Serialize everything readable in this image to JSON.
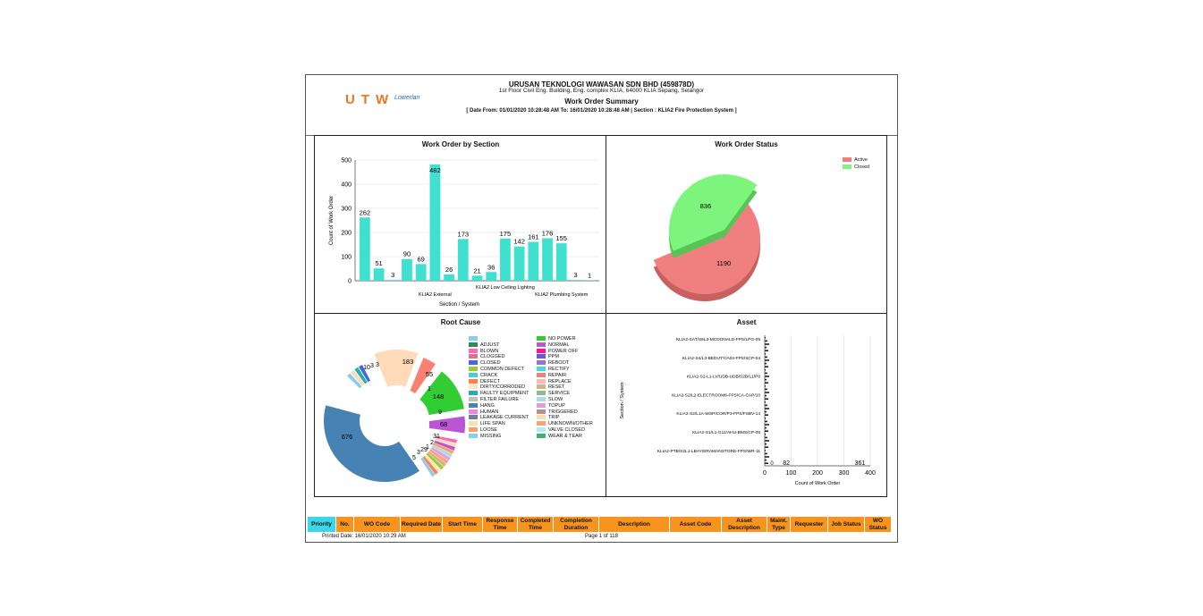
{
  "header": {
    "logo_text": "UTW",
    "logo_mark": "Lowerlan",
    "company": "URUSAN TEKNOLOGI WAWASAN SDN BHD (459878D)",
    "address": "1st Floor Civil Eng. Building, Eng. complex KLIA, 64000 KLIA Sepang, Selangor",
    "title": "Work Order Summary",
    "range": "[ Date From: 01/01/2020 10:28:48 AM  To: 16/01/2020 10:28:48 AM | Section : KLIA2 Fire Protection System ]"
  },
  "chart_data": [
    {
      "type": "bar",
      "title": "Work Order by Section",
      "xlabel": "Section / System",
      "ylabel": "Count of Work Order",
      "ylim": [
        0,
        500
      ],
      "yticks": [
        "0",
        "100",
        "200",
        "300",
        "400",
        "500"
      ],
      "values": [
        262,
        51,
        3,
        90,
        69,
        482,
        26,
        173,
        21,
        36,
        175,
        142,
        161,
        176,
        155,
        3,
        1
      ],
      "xtick_labels": [
        {
          "label": "KLIA2 External",
          "index": 5
        },
        {
          "label": "KLIA2 Low Ceiling Lighting",
          "index": 10
        },
        {
          "label": "KLIA2 Plumbing System",
          "index": 14
        }
      ],
      "color": "#40e0d0",
      "grid": true
    },
    {
      "type": "pie",
      "title": "Work Order Status",
      "slices": [
        {
          "label": "Active",
          "value": 1190,
          "color": "#f08080"
        },
        {
          "label": "Closed",
          "value": 836,
          "color": "#7df57d"
        }
      ],
      "legend": "top-right"
    },
    {
      "type": "pie",
      "title": "Root Cause",
      "donut": true,
      "visible_labels": [
        "676",
        "183",
        "55",
        "1",
        "148",
        "9",
        "68",
        "31",
        "2",
        "1",
        "3",
        "5",
        "29",
        "10",
        "3",
        "3"
      ],
      "major_slices": [
        {
          "value": 676,
          "color": "#4682b4"
        },
        {
          "value": 183,
          "color": "#ffdab9"
        },
        {
          "value": 55,
          "color": "#fa8072"
        },
        {
          "value": 148,
          "color": "#32cd32"
        },
        {
          "value": 68,
          "color": "#ba55d3"
        }
      ],
      "legend_left": [
        "",
        "ADJUST",
        "BLOWN",
        "CLOGGED",
        "CLOSED",
        "COMMON DEFECT",
        "CRACK",
        "DEFECT",
        "DIRTY/CORRODED",
        "FAULTY EQUIPMENT",
        "FILTER FAILURE",
        "HANG",
        "HUMAN",
        "LEAKAGE CURRENT",
        "LIFE SPAN",
        "LOOSE",
        "MISSING"
      ],
      "legend_left_colors": [
        "#87ceeb",
        "#2e8b57",
        "#ff69b4",
        "#db7093",
        "#4169e1",
        "#9acd32",
        "#48d1cc",
        "#ff7f50",
        "#ffe4c4",
        "#20b2aa",
        "#c0c0c0",
        "#4682b4",
        "#ee82ee",
        "#708090",
        "#ffdead",
        "#f4a460",
        "#87ceeb"
      ],
      "legend_right": [
        "NO POWER",
        "NORMAL",
        "POWER OFF",
        "PPM",
        "REBOOT",
        "RECTIFY",
        "REPAIR",
        "REPLACE",
        "RESET",
        "SERVICE",
        "SLOW",
        "TOPUP",
        "TRIGGERED",
        "TRIP",
        "UNKNOWN/OTHER",
        "VALVE CLOSED",
        "WEAR & TEAR"
      ],
      "legend_right_colors": [
        "#32cd32",
        "#ba55d3",
        "#ff1493",
        "#6a5acd",
        "#9370db",
        "#40e0d0",
        "#f08080",
        "#ffb6c1",
        "#d2b48c",
        "#8fbc8f",
        "#add8e6",
        "#dda0dd",
        "#bc8f8f",
        "#f5deb3",
        "#ffa07a",
        "#afeeee",
        "#3cb371"
      ]
    },
    {
      "type": "bar",
      "orientation": "horizontal",
      "title": "Asset",
      "xlabel": "Count of Work Order",
      "ylabel": "Section / System",
      "xlim": [
        0,
        400
      ],
      "xticks": [
        "0",
        "100",
        "200",
        "300",
        "400"
      ],
      "categories": [
        "KLIA2-SAT/S6L3-MCDONALD-FPS/LPG-05",
        "KLIA2-S4/L3-BEDUTY/A04-FPS/SCP-04",
        "KLIA2-S2-L1-LV/UDB-UDB/S2B/L1/P6",
        "KLIA2-S2/L2-ELECTROOM6-FPS/CA-CAP/10",
        "KLIA2-S2/L1A-WSP/COR/P3-FPS/FSBV-14",
        "KLIA2-S1/L1-G11/AHU-BMS/CP-05",
        "KLIA2-PTB/S2L1-LBAY/ERAMANSTORE-FPS/WR-11"
      ],
      "visible_values": [
        "82",
        "361"
      ],
      "grid": true
    }
  ],
  "table": {
    "columns": [
      "Priority",
      "No.",
      "WO Code",
      "Required Date",
      "Start Time",
      "Response Time",
      "Completed Time",
      "Completion Duration",
      "Description",
      "Asset Code",
      "Asset Description",
      "Maint. Type",
      "Requester",
      "Job Status",
      "WO Status"
    ]
  },
  "footer": {
    "printed": "Printed Date: 16/01/2020 10:29 AM",
    "page": "Page 1 of 118"
  }
}
